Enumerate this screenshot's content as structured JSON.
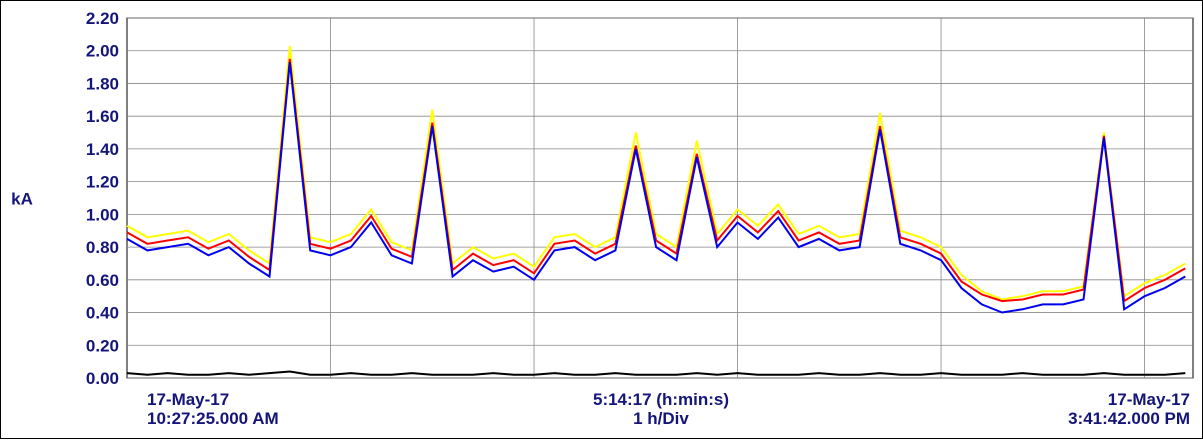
{
  "chart_data": {
    "type": "line",
    "y_label": "kA",
    "start_date": "17-May-17",
    "start_time": "10:27:25.000 AM",
    "span_label": "5:14:17 (h:min:s)",
    "div_label": "1 h/Div",
    "end_date": "17-May-17",
    "end_time": "3:41:42.000 PM",
    "x": [
      0,
      0.1,
      0.2,
      0.3,
      0.4,
      0.5,
      0.6,
      0.7,
      0.8,
      0.9,
      1.0,
      1.1,
      1.2,
      1.3,
      1.4,
      1.5,
      1.6,
      1.7,
      1.8,
      1.9,
      2.0,
      2.1,
      2.2,
      2.3,
      2.4,
      2.5,
      2.6,
      2.7,
      2.8,
      2.9,
      3.0,
      3.1,
      3.2,
      3.3,
      3.4,
      3.5,
      3.6,
      3.7,
      3.8,
      3.9,
      4.0,
      4.1,
      4.2,
      4.3,
      4.4,
      4.5,
      4.6,
      4.7,
      4.8,
      4.9,
      5.0,
      5.1,
      5.2
    ],
    "xlim": [
      0,
      5.238
    ],
    "xticks": [
      1,
      2,
      3,
      4,
      5
    ],
    "ylim": [
      0,
      2.2
    ],
    "yticks": [
      {
        "value": 0,
        "label": "0.00"
      },
      {
        "value": 0.2,
        "label": "0.20"
      },
      {
        "value": 0.4,
        "label": "0.40"
      },
      {
        "value": 0.6,
        "label": "0.60"
      },
      {
        "value": 0.8,
        "label": "0.80"
      },
      {
        "value": 1.0,
        "label": "1.00"
      },
      {
        "value": 1.2,
        "label": "1.20"
      },
      {
        "value": 1.4,
        "label": "1.40"
      },
      {
        "value": 1.6,
        "label": "1.60"
      },
      {
        "value": 1.8,
        "label": "1.80"
      },
      {
        "value": 2.0,
        "label": "2.00"
      },
      {
        "value": 2.2,
        "label": "2.20"
      }
    ],
    "grid": true,
    "series": [
      {
        "color": "#ffff00",
        "values": [
          0.93,
          0.86,
          0.88,
          0.9,
          0.83,
          0.88,
          0.78,
          0.7,
          2.03,
          0.86,
          0.83,
          0.88,
          1.03,
          0.83,
          0.78,
          1.64,
          0.7,
          0.8,
          0.73,
          0.76,
          0.68,
          0.86,
          0.88,
          0.8,
          0.86,
          1.5,
          0.88,
          0.8,
          1.45,
          0.88,
          1.03,
          0.93,
          1.06,
          0.88,
          0.93,
          0.86,
          0.88,
          1.62,
          0.9,
          0.86,
          0.8,
          0.63,
          0.53,
          0.48,
          0.5,
          0.53,
          0.53,
          0.56,
          1.5,
          0.5,
          0.58,
          0.63,
          0.7
        ]
      },
      {
        "color": "#ff0000",
        "values": [
          0.89,
          0.82,
          0.84,
          0.86,
          0.79,
          0.84,
          0.74,
          0.66,
          1.95,
          0.82,
          0.79,
          0.84,
          0.99,
          0.79,
          0.74,
          1.56,
          0.66,
          0.76,
          0.69,
          0.72,
          0.64,
          0.82,
          0.84,
          0.76,
          0.82,
          1.42,
          0.84,
          0.76,
          1.37,
          0.84,
          0.99,
          0.89,
          1.02,
          0.84,
          0.89,
          0.82,
          0.84,
          1.54,
          0.86,
          0.82,
          0.76,
          0.59,
          0.51,
          0.47,
          0.48,
          0.51,
          0.51,
          0.54,
          1.48,
          0.47,
          0.55,
          0.6,
          0.67
        ]
      },
      {
        "color": "#0000ee",
        "values": [
          0.85,
          0.78,
          0.8,
          0.82,
          0.75,
          0.8,
          0.7,
          0.62,
          1.93,
          0.78,
          0.75,
          0.8,
          0.95,
          0.75,
          0.7,
          1.54,
          0.62,
          0.72,
          0.65,
          0.68,
          0.6,
          0.78,
          0.8,
          0.72,
          0.78,
          1.4,
          0.8,
          0.72,
          1.35,
          0.8,
          0.95,
          0.85,
          0.98,
          0.8,
          0.85,
          0.78,
          0.8,
          1.52,
          0.82,
          0.78,
          0.72,
          0.55,
          0.45,
          0.4,
          0.42,
          0.45,
          0.45,
          0.48,
          1.47,
          0.42,
          0.5,
          0.55,
          0.62
        ]
      },
      {
        "color": "#000000",
        "values": [
          0.03,
          0.02,
          0.03,
          0.02,
          0.02,
          0.03,
          0.02,
          0.03,
          0.04,
          0.02,
          0.02,
          0.03,
          0.02,
          0.02,
          0.03,
          0.02,
          0.02,
          0.02,
          0.03,
          0.02,
          0.02,
          0.03,
          0.02,
          0.02,
          0.03,
          0.02,
          0.02,
          0.02,
          0.03,
          0.02,
          0.03,
          0.02,
          0.02,
          0.02,
          0.03,
          0.02,
          0.02,
          0.03,
          0.02,
          0.02,
          0.03,
          0.02,
          0.02,
          0.02,
          0.03,
          0.02,
          0.02,
          0.02,
          0.03,
          0.02,
          0.02,
          0.02,
          0.03
        ]
      }
    ]
  }
}
